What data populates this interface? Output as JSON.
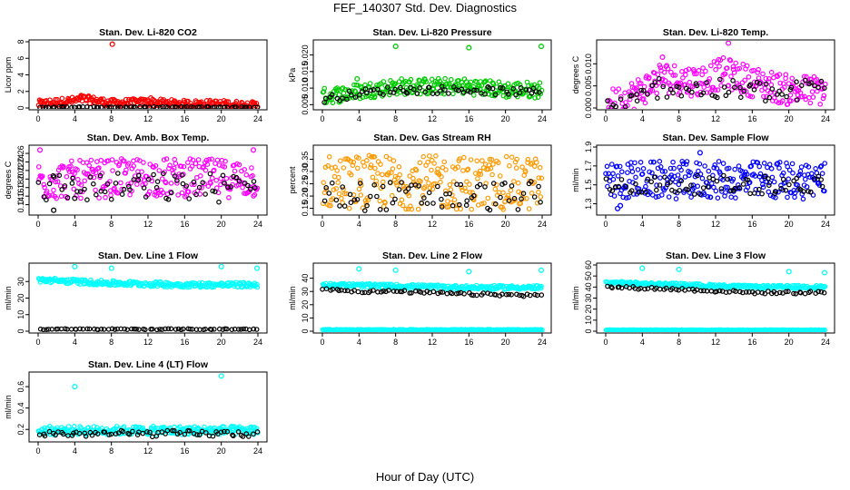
{
  "title": "FEF_140307  Std. Dev. Diagnostics",
  "xlabel": "Hour of Day (UTC)",
  "chart_data": [
    {
      "type": "scatter",
      "title": "Stan. Dev. Li-820 CO2",
      "ylabel": "Licor ppm",
      "xlim": [
        0,
        24
      ],
      "ylim": [
        0,
        8
      ],
      "xticks": [
        0,
        4,
        8,
        12,
        16,
        20,
        24
      ],
      "yticks": [
        0,
        2,
        4,
        6,
        8
      ],
      "ytick_labels": [
        "0",
        "2",
        "4",
        "6",
        "8"
      ],
      "series": [
        {
          "color": "#ff0000",
          "band": {
            "base": [
              [
                0,
                0.5
              ],
              [
                4,
                0.9
              ],
              [
                5,
                1.1
              ],
              [
                8,
                0.6
              ],
              [
                12,
                0.7
              ],
              [
                16,
                0.5
              ],
              [
                20,
                0.5
              ],
              [
                24,
                0.3
              ]
            ],
            "spread": 0.45
          },
          "outliers": [
            [
              8.1,
              7.7
            ],
            [
              4.7,
              1.5
            ],
            [
              12.3,
              1.2
            ]
          ]
        },
        {
          "color": "#000000",
          "band": {
            "base": [
              [
                0,
                0.1
              ],
              [
                24,
                0.1
              ]
            ],
            "spread": 0.05
          }
        }
      ]
    },
    {
      "type": "scatter",
      "title": "Stan. Dev. Li-820 Pressure",
      "ylabel": "kPa",
      "xlim": [
        0,
        24
      ],
      "ylim": [
        0.004,
        0.024
      ],
      "xticks": [
        0,
        4,
        8,
        12,
        16,
        20,
        24
      ],
      "yticks": [
        0.005,
        0.01,
        0.015,
        0.02
      ],
      "ytick_labels": [
        "0.005",
        "0.010",
        "0.015",
        "0.020"
      ],
      "series": [
        {
          "color": "#00cc00",
          "band": {
            "base": [
              [
                0,
                0.0075
              ],
              [
                4,
                0.009
              ],
              [
                8,
                0.0105
              ],
              [
                16,
                0.0105
              ],
              [
                20,
                0.0095
              ],
              [
                24,
                0.0095
              ]
            ],
            "spread": 0.0025
          },
          "outliers": [
            [
              8,
              0.0226
            ],
            [
              16,
              0.0222
            ],
            [
              23.9,
              0.0226
            ],
            [
              3.8,
              0.0128
            ]
          ]
        },
        {
          "color": "#000000",
          "band": {
            "base": [
              [
                0,
                0.0065
              ],
              [
                4,
                0.0085
              ],
              [
                8,
                0.0095
              ],
              [
                16,
                0.0095
              ],
              [
                20,
                0.009
              ],
              [
                24,
                0.0088
              ]
            ],
            "spread": 0.0012
          }
        }
      ]
    },
    {
      "type": "scatter",
      "title": "Stan. Dev. Li-820 Temp.",
      "ylabel": "degrees C",
      "xlim": [
        0,
        24
      ],
      "ylim": [
        0,
        0.015
      ],
      "xticks": [
        0,
        4,
        8,
        12,
        16,
        20,
        24
      ],
      "yticks": [
        0,
        0.005,
        0.01
      ],
      "ytick_labels": [
        "0.000",
        "0.005",
        "0.010"
      ],
      "series": [
        {
          "color": "#ff00ff",
          "band": {
            "base": [
              [
                0,
                0.0005
              ],
              [
                2,
                0.002
              ],
              [
                4,
                0.004
              ],
              [
                6,
                0.007
              ],
              [
                10,
                0.006
              ],
              [
                13,
                0.008
              ],
              [
                16,
                0.006
              ],
              [
                20,
                0.004
              ],
              [
                24,
                0.004
              ]
            ],
            "spread": 0.0035
          },
          "outliers": [
            [
              13.4,
              0.0147
            ],
            [
              6.2,
              0.0115
            ]
          ]
        },
        {
          "color": "#000000",
          "band": {
            "base": [
              [
                0,
                0
              ],
              [
                3,
                0.001
              ],
              [
                6,
                0.005
              ],
              [
                12,
                0.004
              ],
              [
                16,
                0.004
              ],
              [
                20,
                0.003
              ],
              [
                24,
                0.006
              ]
            ],
            "spread": 0.0025
          }
        }
      ]
    },
    {
      "type": "scatter",
      "title": "Stan. Dev. Amb. Box Temp.",
      "ylabel": "degrees C",
      "xlim": [
        0,
        24
      ],
      "ylim": [
        0.12,
        0.275
      ],
      "xticks": [
        0,
        4,
        8,
        12,
        16,
        20,
        24
      ],
      "yticks": [
        0.14,
        0.16,
        0.18,
        0.2,
        0.22,
        0.24,
        0.26
      ],
      "ytick_labels": [
        "0.14",
        "0.16",
        "0.18",
        "0.20",
        "0.22",
        "0.24",
        "0.26"
      ],
      "series": [
        {
          "color": "#ff00ff",
          "band": {
            "base": [
              [
                0,
                0.195
              ],
              [
                12,
                0.205
              ],
              [
                24,
                0.2
              ]
            ],
            "spread": 0.045
          },
          "outliers": [
            [
              23.5,
              0.268
            ],
            [
              0.2,
              0.268
            ]
          ]
        },
        {
          "color": "#000000",
          "band": {
            "base": [
              [
                0,
                0.18
              ],
              [
                24,
                0.18
              ]
            ],
            "spread": 0.035
          },
          "outliers": [
            [
              1.7,
              0.127
            ],
            [
              4,
              0.155
            ]
          ]
        }
      ]
    },
    {
      "type": "scatter",
      "title": "Stan. Dev. Gas Stream RH",
      "ylabel": "percent",
      "xlim": [
        0,
        24
      ],
      "ylim": [
        0.13,
        0.4
      ],
      "xticks": [
        0,
        4,
        8,
        12,
        16,
        20,
        24
      ],
      "yticks": [
        0.15,
        0.2,
        0.25,
        0.3,
        0.35
      ],
      "ytick_labels": [
        "0.15",
        "0.20",
        "0.25",
        "0.30",
        "0.35"
      ],
      "series": [
        {
          "color": "#ff9900",
          "band": {
            "base": [
              [
                0,
                0.26
              ],
              [
                24,
                0.25
              ]
            ],
            "spread": 0.11
          }
        },
        {
          "color": "#000000",
          "band": {
            "base": [
              [
                0,
                0.2
              ],
              [
                24,
                0.2
              ]
            ],
            "spread": 0.06
          }
        }
      ]
    },
    {
      "type": "scatter",
      "title": "Stan. Dev. Sample Flow",
      "ylabel": "ml/min",
      "xlim": [
        0,
        24
      ],
      "ylim": [
        1.2,
        1.9
      ],
      "xticks": [
        0,
        4,
        8,
        12,
        16,
        20,
        24
      ],
      "yticks": [
        1.3,
        1.5,
        1.7,
        1.9
      ],
      "ytick_labels": [
        "1.3",
        "1.5",
        "1.7",
        "1.9"
      ],
      "series": [
        {
          "color": "#0000ff",
          "band": {
            "base": [
              [
                0,
                1.55
              ],
              [
                24,
                1.55
              ]
            ],
            "spread": 0.2
          },
          "outliers": [
            [
              1.3,
              1.25
            ],
            [
              1.6,
              1.28
            ],
            [
              10.3,
              1.84
            ]
          ]
        },
        {
          "color": "#000000",
          "band": {
            "base": [
              [
                0,
                1.5
              ],
              [
                24,
                1.5
              ]
            ],
            "spread": 0.1
          }
        }
      ]
    },
    {
      "type": "scatter",
      "title": "Stan. Dev. Line 1 Flow",
      "ylabel": "ml/min",
      "xlim": [
        0,
        24
      ],
      "ylim": [
        0,
        40
      ],
      "xticks": [
        0,
        4,
        8,
        12,
        16,
        20,
        24
      ],
      "yticks": [
        0,
        10,
        20,
        30
      ],
      "ytick_labels": [
        "0",
        "10",
        "20",
        "30"
      ],
      "series": [
        {
          "color": "#00ffff",
          "band": {
            "base": [
              [
                0,
                31
              ],
              [
                4,
                30
              ],
              [
                8,
                29
              ],
              [
                16,
                28
              ],
              [
                24,
                28
              ]
            ],
            "spread": 1.5
          },
          "outliers": [
            [
              4,
              39
            ],
            [
              8,
              38
            ],
            [
              20,
              39
            ],
            [
              23.9,
              38
            ]
          ]
        },
        {
          "color": "#000000",
          "band": {
            "base": [
              [
                0,
                1.2
              ],
              [
                24,
                1.2
              ]
            ],
            "spread": 0.3
          }
        }
      ]
    },
    {
      "type": "scatter",
      "title": "Stan. Dev. Line 2 Flow",
      "ylabel": "ml/min",
      "xlim": [
        0,
        24
      ],
      "ylim": [
        0,
        50
      ],
      "xticks": [
        0,
        4,
        8,
        12,
        16,
        20,
        24
      ],
      "yticks": [
        0,
        10,
        20,
        30,
        40
      ],
      "ytick_labels": [
        "0",
        "10",
        "20",
        "30",
        "40"
      ],
      "series": [
        {
          "color": "#00ffff",
          "band": {
            "base": [
              [
                0,
                35
              ],
              [
                8,
                34
              ],
              [
                16,
                33
              ],
              [
                24,
                33
              ]
            ],
            "spread": 1.5
          },
          "outliers": [
            [
              4,
              47
            ],
            [
              8,
              46
            ],
            [
              16,
              45
            ],
            [
              23.9,
              46
            ]
          ]
        },
        {
          "color": "#00ffff",
          "band": {
            "base": [
              [
                0,
                1
              ],
              [
                24,
                1
              ]
            ],
            "spread": 0.3
          }
        },
        {
          "color": "#000000",
          "band": {
            "base": [
              [
                0.5,
                32
              ],
              [
                4,
                30
              ],
              [
                8,
                30
              ],
              [
                16,
                28
              ],
              [
                24,
                27
              ]
            ],
            "spread": 1
          }
        }
      ]
    },
    {
      "type": "scatter",
      "title": "Stan. Dev. Line 3 Flow",
      "ylabel": "ml/min",
      "xlim": [
        0,
        24
      ],
      "ylim": [
        0,
        60
      ],
      "xticks": [
        0,
        4,
        8,
        12,
        16,
        20,
        24
      ],
      "yticks": [
        0,
        10,
        20,
        30,
        40,
        50,
        60
      ],
      "ytick_labels": [
        "0",
        "10",
        "20",
        "30",
        "40",
        "50",
        "60"
      ],
      "series": [
        {
          "color": "#00ffff",
          "band": {
            "base": [
              [
                0,
                44
              ],
              [
                8,
                42
              ],
              [
                16,
                40
              ],
              [
                24,
                40
              ]
            ],
            "spread": 1.5
          },
          "outliers": [
            [
              4,
              57
            ],
            [
              8,
              56
            ],
            [
              20,
              54
            ],
            [
              23.9,
              53
            ]
          ]
        },
        {
          "color": "#00ffff",
          "band": {
            "base": [
              [
                0,
                1
              ],
              [
                24,
                1
              ]
            ],
            "spread": 0.3
          }
        },
        {
          "color": "#000000",
          "band": {
            "base": [
              [
                0.5,
                40
              ],
              [
                8,
                38
              ],
              [
                16,
                35
              ],
              [
                24,
                35
              ]
            ],
            "spread": 1.2
          }
        }
      ]
    },
    {
      "type": "scatter",
      "title": "Stan. Dev. Line 4 (LT) Flow",
      "ylabel": "ml/min",
      "xlim": [
        0,
        24
      ],
      "ylim": [
        0.1,
        0.72
      ],
      "xticks": [
        0,
        4,
        8,
        12,
        16,
        20,
        24
      ],
      "yticks": [
        0.2,
        0.4,
        0.6
      ],
      "ytick_labels": [
        "0.2",
        "0.4",
        "0.6"
      ],
      "series": [
        {
          "color": "#00ffff",
          "band": {
            "base": [
              [
                0,
                0.19
              ],
              [
                24,
                0.19
              ]
            ],
            "spread": 0.04
          },
          "outliers": [
            [
              4,
              0.6
            ],
            [
              20,
              0.7
            ]
          ]
        },
        {
          "color": "#000000",
          "band": {
            "base": [
              [
                0,
                0.16
              ],
              [
                24,
                0.16
              ]
            ],
            "spread": 0.03
          }
        }
      ]
    }
  ]
}
